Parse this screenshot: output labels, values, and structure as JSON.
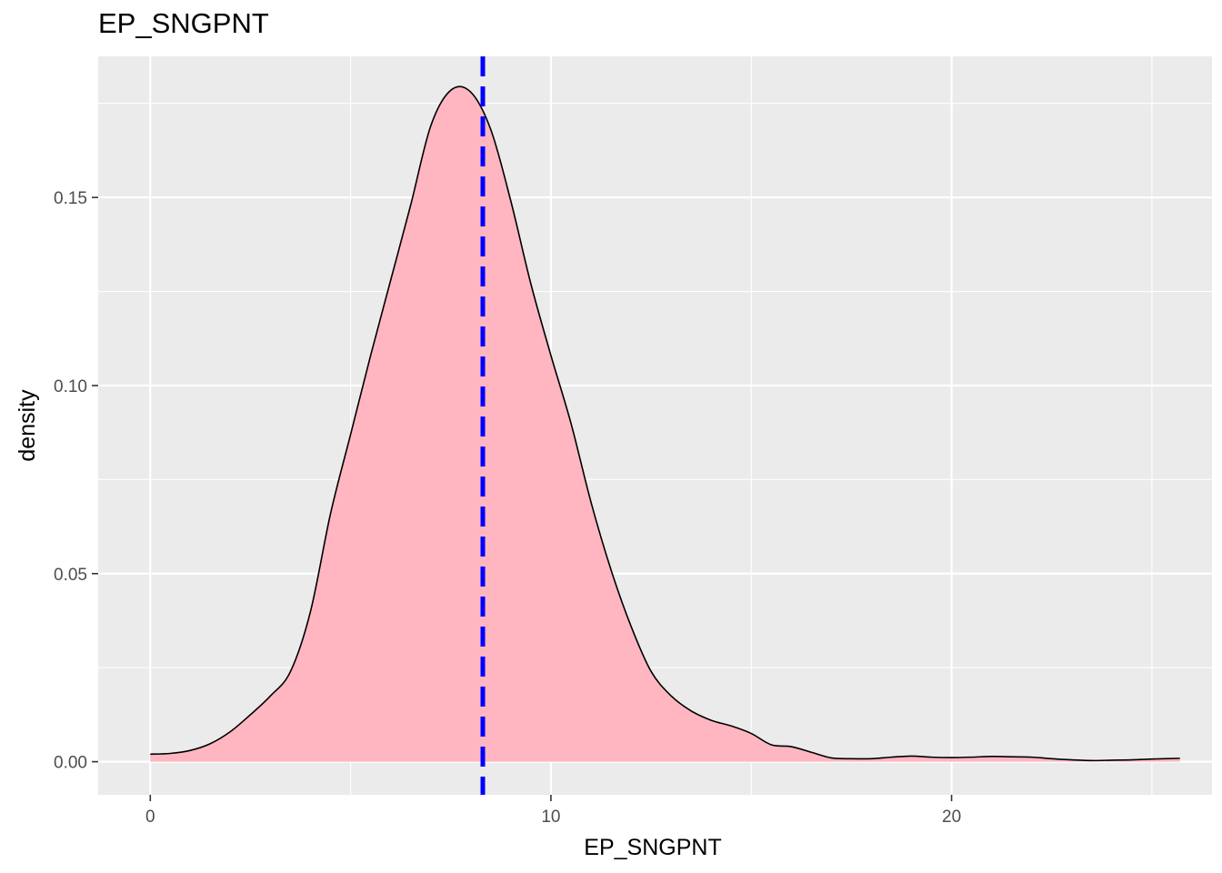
{
  "chart_data": {
    "type": "area",
    "title": "EP_SNGPNT",
    "xlabel": "EP_SNGPNT",
    "ylabel": "density",
    "xlim": [
      -1.3,
      26.5
    ],
    "ylim": [
      -0.0088,
      0.1875
    ],
    "x_ticks": [
      0,
      10,
      20
    ],
    "x_tick_labels": [
      "0",
      "10",
      "20"
    ],
    "y_ticks": [
      0.0,
      0.05,
      0.1,
      0.15
    ],
    "y_tick_labels": [
      "0.00",
      "0.05",
      "0.10",
      "0.15"
    ],
    "grid": true,
    "legend": "none",
    "fill_color": "#FFB6C1",
    "line_color": "#000000",
    "panel_color": "#EBEBEB",
    "vline": {
      "x": 8.3,
      "color": "#0000FF",
      "style": "dashed"
    },
    "series": [
      {
        "x": [
          0,
          0.5,
          1,
          1.5,
          2,
          2.5,
          3,
          3.5,
          4,
          4.5,
          5,
          5.5,
          6,
          6.5,
          7,
          7.5,
          8,
          8.5,
          9,
          9.5,
          10,
          10.5,
          11,
          11.5,
          12,
          12.5,
          13,
          13.5,
          14,
          14.5,
          15,
          15.5,
          16,
          16.5,
          17,
          17.5,
          18,
          18.5,
          19,
          19.5,
          20,
          20.5,
          21,
          21.5,
          22,
          22.5,
          23,
          23.5,
          24,
          24.5,
          25,
          25.7
        ],
        "values": [
          0.002,
          0.0022,
          0.003,
          0.0048,
          0.008,
          0.0125,
          0.0175,
          0.024,
          0.04,
          0.066,
          0.087,
          0.108,
          0.128,
          0.148,
          0.169,
          0.1785,
          0.178,
          0.168,
          0.149,
          0.127,
          0.108,
          0.09,
          0.069,
          0.051,
          0.036,
          0.024,
          0.0175,
          0.0135,
          0.011,
          0.0095,
          0.0075,
          0.0045,
          0.004,
          0.0025,
          0.001,
          0.0008,
          0.0008,
          0.0012,
          0.0015,
          0.0012,
          0.0011,
          0.0012,
          0.0014,
          0.0013,
          0.0012,
          0.0008,
          0.0005,
          0.0003,
          0.0004,
          0.0005,
          0.0007,
          0.0009
        ]
      }
    ]
  }
}
